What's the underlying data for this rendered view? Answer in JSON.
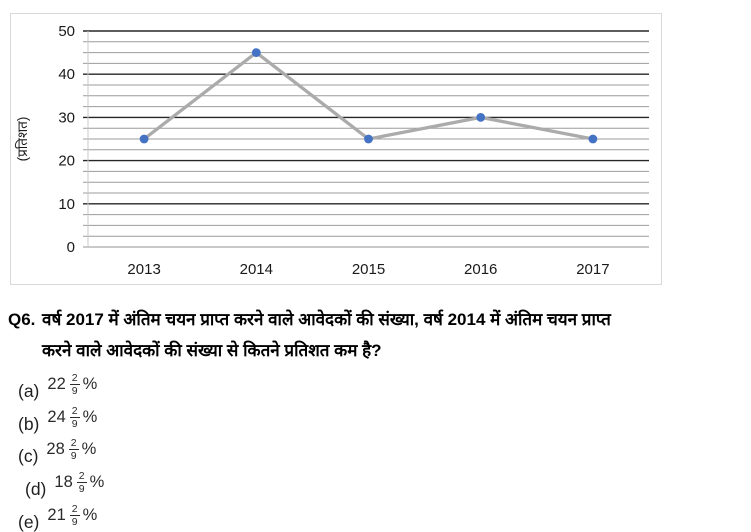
{
  "chart_data": {
    "type": "line",
    "categories": [
      "2013",
      "2014",
      "2015",
      "2016",
      "2017"
    ],
    "series": [
      {
        "name": "प्रतिशत",
        "values": [
          25,
          45,
          25,
          30,
          25
        ]
      }
    ],
    "title": "",
    "xlabel": "",
    "ylabel": "(प्रतिशत)",
    "ylim": [
      0,
      50
    ],
    "y_major_ticks": [
      0,
      10,
      20,
      30,
      40,
      50
    ],
    "y_minor_step": 2.5,
    "grid": "horizontal major and minor gridlines",
    "legend": "none"
  },
  "colors": {
    "line": "#ABABAB",
    "marker": "#4472C4",
    "grid_major": "#262626",
    "grid_minor": "#9B9B9B",
    "axis": "#C9C9C9",
    "card_border": "#D9D9D9",
    "tick_text": "#1A1A1A"
  },
  "question": {
    "number": "Q6.",
    "line1": "वर्ष 2017 में अंतिम चयन प्राप्त करने वाले आवेदकों की संख्या, वर्ष 2014 में अंतिम चयन प्राप्त",
    "line2": "करने वाले आवेदकों की संख्या से कितने प्रतिशत कम है?"
  },
  "options": [
    {
      "letter": "(a)",
      "whole": "22",
      "num": "2",
      "den": "9",
      "pct": "%"
    },
    {
      "letter": "(b)",
      "whole": "24",
      "num": "2",
      "den": "9",
      "pct": "%"
    },
    {
      "letter": "(c)",
      "whole": "28",
      "num": "2",
      "den": "9",
      "pct": "%"
    },
    {
      "letter": "(d)",
      "whole": "18",
      "num": "2",
      "den": "9",
      "pct": "%"
    },
    {
      "letter": "(e)",
      "whole": "21",
      "num": "2",
      "den": "9",
      "pct": "%"
    }
  ]
}
